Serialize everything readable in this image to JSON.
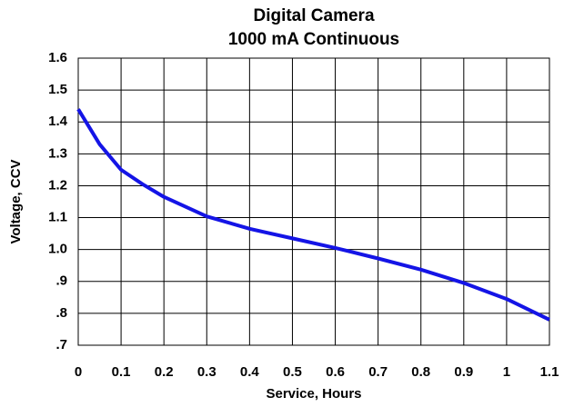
{
  "chart_data": {
    "type": "line",
    "title": "Digital Camera",
    "subtitle": "1000 mA Continuous",
    "x_label": "Service, Hours",
    "y_label": "Voltage, CCV",
    "x": [
      0,
      0.05,
      0.1,
      0.15,
      0.2,
      0.3,
      0.4,
      0.5,
      0.6,
      0.7,
      0.8,
      0.9,
      1.0,
      1.1
    ],
    "series": [
      {
        "name": "Voltage",
        "color": "#1414e6",
        "values": [
          1.44,
          1.33,
          1.25,
          1.205,
          1.165,
          1.104,
          1.065,
          1.035,
          1.005,
          0.972,
          0.937,
          0.895,
          0.845,
          0.78
        ]
      }
    ],
    "xlim": [
      0,
      1.1
    ],
    "xticks": [
      0,
      0.1,
      0.2,
      0.3,
      0.4,
      0.5,
      0.6,
      0.7,
      0.8,
      0.9,
      1,
      1.1
    ],
    "ylim": [
      0.7,
      1.6
    ],
    "yticks": [
      {
        "value": 0.7,
        "label": ".7"
      },
      {
        "value": 0.8,
        "label": ".8"
      },
      {
        "value": 0.9,
        "label": ".9"
      },
      {
        "value": 1.0,
        "label": "1.0"
      },
      1.1,
      1.2,
      1.3,
      1.4,
      1.5,
      1.6
    ],
    "grid": true
  }
}
